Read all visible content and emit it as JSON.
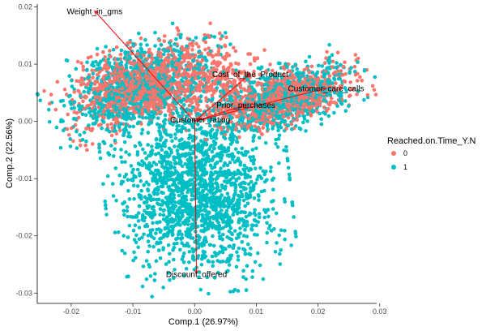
{
  "chart_data": {
    "type": "scatter",
    "title": "",
    "xlabel": "Comp.1 (26.97%)",
    "ylabel": "Comp.2 (22.56%)",
    "xlim": [
      -0.0255,
      0.0295
    ],
    "ylim": [
      -0.0318,
      0.0205
    ],
    "x_ticks": [
      -0.02,
      -0.01,
      0.0,
      0.01,
      0.02,
      0.03
    ],
    "x_tick_labels": [
      "-0.02",
      "-0.01",
      "0.00",
      "0.01",
      "0.02",
      "0.03"
    ],
    "y_ticks": [
      -0.03,
      -0.02,
      -0.01,
      0.0,
      0.01,
      0.02
    ],
    "y_tick_labels": [
      "-0.03",
      "-0.02",
      "-0.01",
      "0.00",
      "0.01",
      "0.02"
    ],
    "grid": false,
    "legend": {
      "title": "Reached.on.Time_Y.N",
      "position": "right",
      "entries": [
        {
          "label": "0",
          "color": "#F8766D"
        },
        {
          "label": "1",
          "color": "#00BFC4"
        }
      ]
    },
    "arrow_color": "#FF0000",
    "loadings": [
      {
        "label": "Weight_in_gms",
        "x": -0.0162,
        "y": 0.0193
      },
      {
        "label": "Cost_of_the_Product",
        "x": 0.009,
        "y": 0.0083
      },
      {
        "label": "Customer_care_calls",
        "x": 0.0213,
        "y": 0.0058
      },
      {
        "label": "Prior_purchases",
        "x": 0.0083,
        "y": 0.0029
      },
      {
        "label": "Customer_rating",
        "x": 0.0009,
        "y": 0.0004
      },
      {
        "label": "Discount_offered",
        "x": 0.0003,
        "y": -0.0266
      }
    ],
    "series": [
      {
        "name": "0",
        "color": "#F8766D",
        "clusters": [
          {
            "cx": -0.0085,
            "cy": 0.0062,
            "sx": 0.0058,
            "sy": 0.003,
            "rot": 0.38,
            "n": 1100
          },
          {
            "cx": 0.0145,
            "cy": 0.004,
            "sx": 0.0055,
            "sy": 0.0021,
            "rot": 0.33,
            "n": 900
          },
          {
            "cx": 0.004,
            "cy": 0.0065,
            "sx": 0.004,
            "sy": 0.003,
            "rot": 0.2,
            "n": 250
          }
        ]
      },
      {
        "name": "1",
        "color": "#00BFC4",
        "clusters": [
          {
            "cx": -0.0085,
            "cy": 0.0058,
            "sx": 0.0062,
            "sy": 0.0035,
            "rot": 0.38,
            "n": 900
          },
          {
            "cx": 0.0145,
            "cy": 0.004,
            "sx": 0.006,
            "sy": 0.0025,
            "rot": 0.33,
            "n": 750
          },
          {
            "cx": 0.0005,
            "cy": -0.0125,
            "sx": 0.0058,
            "sy": 0.0068,
            "rot": 0.1,
            "n": 1700
          }
        ]
      }
    ]
  }
}
